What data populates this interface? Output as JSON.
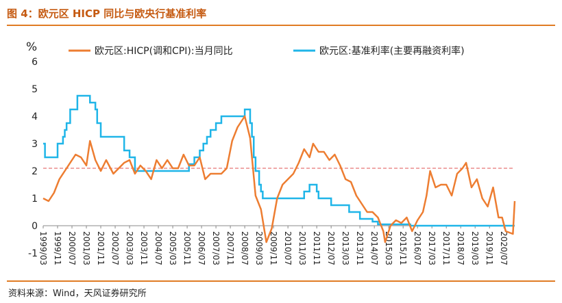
{
  "header": {
    "title": "图 4：欧元区 HICP 同比与欧央行基准利率"
  },
  "footer": {
    "source": "资料来源：Wind，天风证券研究所"
  },
  "colors": {
    "hicp": "#ed7d31",
    "rate": "#1fb5e8",
    "reference": "#e05050",
    "accent": "#e07b23"
  },
  "chart_data": {
    "type": "line",
    "title": "",
    "ylabel": "%",
    "ylim": [
      -1,
      6
    ],
    "yticks": [
      -1,
      0,
      1,
      2,
      3,
      4,
      5,
      6
    ],
    "xlim": [
      "1999/03",
      "2021/01"
    ],
    "xticks": [
      "1999/03",
      "1999/11",
      "2000/07",
      "2001/03",
      "2001/11",
      "2002/07",
      "2003/03",
      "2003/11",
      "2004/07",
      "2005/03",
      "2005/11",
      "2006/07",
      "2007/03",
      "2007/11",
      "2008/07",
      "2009/03",
      "2009/11",
      "2010/07",
      "2011/03",
      "2011/11",
      "2012/07",
      "2013/03",
      "2013/11",
      "2014/07",
      "2015/03",
      "2015/11",
      "2016/07",
      "2017/03",
      "2017/11",
      "2018/07",
      "2019/03",
      "2019/11",
      "2020/07"
    ],
    "legend_position": "top",
    "reference_line": {
      "y": 2.1,
      "style": "dashed"
    },
    "series": [
      {
        "name": "欧元区:HICP(调和CPI):当月同比",
        "color": "#ed7d31",
        "points": [
          [
            "1999/03",
            1.0
          ],
          [
            "1999/06",
            0.9
          ],
          [
            "1999/09",
            1.2
          ],
          [
            "1999/12",
            1.7
          ],
          [
            "2000/03",
            2.0
          ],
          [
            "2000/06",
            2.3
          ],
          [
            "2000/09",
            2.6
          ],
          [
            "2000/12",
            2.5
          ],
          [
            "2001/03",
            2.2
          ],
          [
            "2001/05",
            3.1
          ],
          [
            "2001/08",
            2.4
          ],
          [
            "2001/11",
            2.0
          ],
          [
            "2002/02",
            2.4
          ],
          [
            "2002/06",
            1.9
          ],
          [
            "2002/09",
            2.1
          ],
          [
            "2002/12",
            2.3
          ],
          [
            "2003/03",
            2.4
          ],
          [
            "2003/06",
            1.9
          ],
          [
            "2003/09",
            2.2
          ],
          [
            "2003/12",
            2.0
          ],
          [
            "2004/03",
            1.7
          ],
          [
            "2004/06",
            2.4
          ],
          [
            "2004/09",
            2.1
          ],
          [
            "2004/12",
            2.4
          ],
          [
            "2005/03",
            2.1
          ],
          [
            "2005/06",
            2.1
          ],
          [
            "2005/09",
            2.6
          ],
          [
            "2005/12",
            2.2
          ],
          [
            "2006/03",
            2.2
          ],
          [
            "2006/06",
            2.5
          ],
          [
            "2006/09",
            1.7
          ],
          [
            "2006/12",
            1.9
          ],
          [
            "2007/03",
            1.9
          ],
          [
            "2007/06",
            1.9
          ],
          [
            "2007/09",
            2.1
          ],
          [
            "2007/12",
            3.1
          ],
          [
            "2008/03",
            3.6
          ],
          [
            "2008/07",
            4.0
          ],
          [
            "2008/10",
            3.2
          ],
          [
            "2009/01",
            1.1
          ],
          [
            "2009/04",
            0.6
          ],
          [
            "2009/07",
            -0.6
          ],
          [
            "2009/10",
            -0.1
          ],
          [
            "2010/01",
            1.0
          ],
          [
            "2010/04",
            1.5
          ],
          [
            "2010/07",
            1.7
          ],
          [
            "2010/10",
            1.9
          ],
          [
            "2011/01",
            2.3
          ],
          [
            "2011/04",
            2.8
          ],
          [
            "2011/07",
            2.5
          ],
          [
            "2011/09",
            3.0
          ],
          [
            "2011/12",
            2.7
          ],
          [
            "2012/03",
            2.7
          ],
          [
            "2012/06",
            2.4
          ],
          [
            "2012/09",
            2.6
          ],
          [
            "2012/12",
            2.2
          ],
          [
            "2013/03",
            1.7
          ],
          [
            "2013/06",
            1.6
          ],
          [
            "2013/09",
            1.1
          ],
          [
            "2013/12",
            0.8
          ],
          [
            "2014/03",
            0.5
          ],
          [
            "2014/06",
            0.5
          ],
          [
            "2014/09",
            0.3
          ],
          [
            "2014/12",
            -0.2
          ],
          [
            "2015/01",
            -0.6
          ],
          [
            "2015/04",
            0.0
          ],
          [
            "2015/07",
            0.2
          ],
          [
            "2015/10",
            0.1
          ],
          [
            "2016/01",
            0.3
          ],
          [
            "2016/04",
            -0.2
          ],
          [
            "2016/07",
            0.2
          ],
          [
            "2016/10",
            0.5
          ],
          [
            "2016/12",
            1.1
          ],
          [
            "2017/02",
            2.0
          ],
          [
            "2017/05",
            1.4
          ],
          [
            "2017/08",
            1.5
          ],
          [
            "2017/11",
            1.5
          ],
          [
            "2018/02",
            1.1
          ],
          [
            "2018/05",
            1.9
          ],
          [
            "2018/08",
            2.1
          ],
          [
            "2018/10",
            2.3
          ],
          [
            "2019/01",
            1.4
          ],
          [
            "2019/04",
            1.7
          ],
          [
            "2019/07",
            1.0
          ],
          [
            "2019/10",
            0.7
          ],
          [
            "2020/01",
            1.4
          ],
          [
            "2020/04",
            0.3
          ],
          [
            "2020/06",
            0.3
          ],
          [
            "2020/08",
            -0.2
          ],
          [
            "2020/12",
            -0.3
          ],
          [
            "2021/01",
            0.9
          ]
        ]
      },
      {
        "name": "欧元区:基准利率(主要再融资利率)",
        "color": "#1fb5e8",
        "points": [
          [
            "1999/03",
            3.0
          ],
          [
            "1999/04",
            2.5
          ],
          [
            "1999/11",
            3.0
          ],
          [
            "2000/02",
            3.25
          ],
          [
            "2000/03",
            3.5
          ],
          [
            "2000/04",
            3.75
          ],
          [
            "2000/06",
            4.25
          ],
          [
            "2000/10",
            4.75
          ],
          [
            "2001/05",
            4.5
          ],
          [
            "2001/08",
            4.25
          ],
          [
            "2001/09",
            3.75
          ],
          [
            "2001/11",
            3.25
          ],
          [
            "2002/12",
            2.75
          ],
          [
            "2003/03",
            2.5
          ],
          [
            "2003/06",
            2.0
          ],
          [
            "2005/12",
            2.25
          ],
          [
            "2006/03",
            2.5
          ],
          [
            "2006/06",
            2.75
          ],
          [
            "2006/08",
            3.0
          ],
          [
            "2006/10",
            3.25
          ],
          [
            "2006/12",
            3.5
          ],
          [
            "2007/03",
            3.75
          ],
          [
            "2007/06",
            4.0
          ],
          [
            "2008/07",
            4.25
          ],
          [
            "2008/10",
            3.75
          ],
          [
            "2008/11",
            3.25
          ],
          [
            "2008/12",
            2.5
          ],
          [
            "2009/01",
            2.0
          ],
          [
            "2009/03",
            1.5
          ],
          [
            "2009/04",
            1.25
          ],
          [
            "2009/05",
            1.0
          ],
          [
            "2011/04",
            1.25
          ],
          [
            "2011/07",
            1.5
          ],
          [
            "2011/11",
            1.25
          ],
          [
            "2011/12",
            1.0
          ],
          [
            "2012/07",
            0.75
          ],
          [
            "2013/05",
            0.5
          ],
          [
            "2013/11",
            0.25
          ],
          [
            "2014/06",
            0.15
          ],
          [
            "2014/09",
            0.05
          ],
          [
            "2016/03",
            0.0
          ],
          [
            "2021/01",
            0.0
          ]
        ]
      }
    ]
  }
}
